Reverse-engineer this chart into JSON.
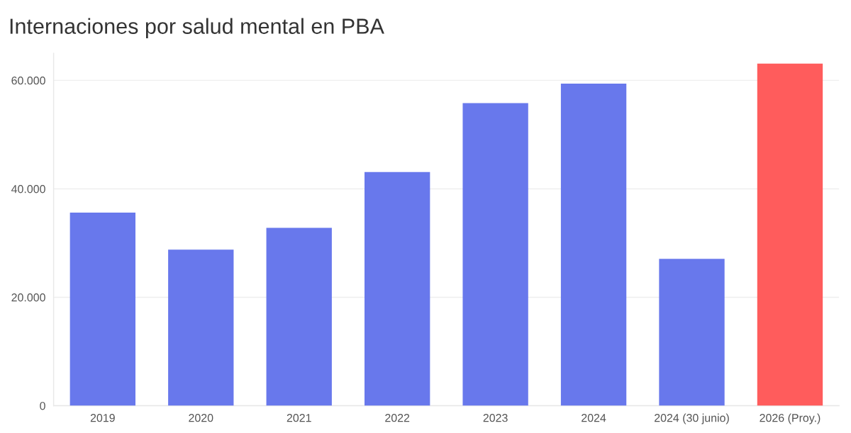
{
  "chart_data": {
    "type": "bar",
    "title": "Internaciones por salud mental en PBA",
    "categories": [
      "2019",
      "2020",
      "2021",
      "2022",
      "2023",
      "2024",
      "2024 (30 junio)",
      "2026 (Proy.)"
    ],
    "values": [
      35600,
      28800,
      32800,
      43100,
      55800,
      59400,
      27100,
      63100
    ],
    "colors": [
      "#6878ec",
      "#6878ec",
      "#6878ec",
      "#6878ec",
      "#6878ec",
      "#6878ec",
      "#6878ec",
      "#ff5c5c"
    ],
    "ylim": [
      0,
      65000
    ],
    "yticks": [
      0,
      {
        "value": 20000,
        "label": "20.000"
      },
      {
        "value": 40000,
        "label": "40.000"
      },
      {
        "value": 60000,
        "label": "60.000"
      }
    ],
    "grid": "y"
  }
}
